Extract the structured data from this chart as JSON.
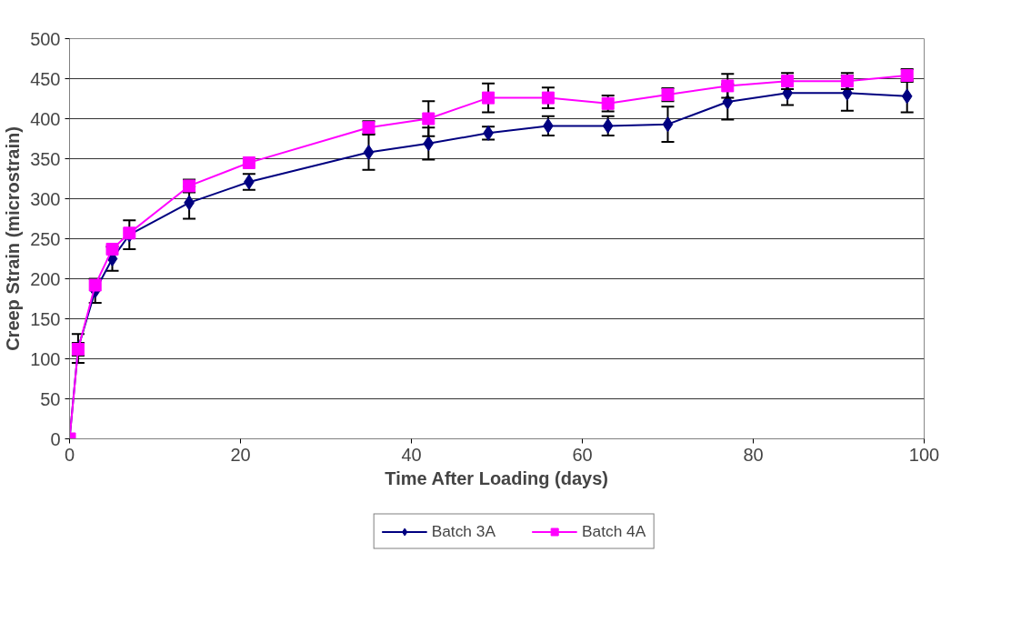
{
  "chart_data": {
    "type": "line",
    "xlabel": "Time After Loading (days)",
    "ylabel": "Creep Strain (microstrain)",
    "x": [
      0,
      1,
      3,
      5,
      7,
      14,
      21,
      35,
      42,
      49,
      56,
      63,
      70,
      77,
      84,
      91,
      98
    ],
    "series": [
      {
        "name": "Batch 3A",
        "color": "#000080",
        "marker": "diamond",
        "values": [
          0,
          113,
          185,
          225,
          255,
          295,
          321,
          358,
          369,
          382,
          391,
          391,
          393,
          421,
          432,
          432,
          428
        ],
        "errors": [
          null,
          18,
          15,
          15,
          18,
          20,
          10,
          22,
          20,
          8,
          12,
          12,
          22,
          22,
          15,
          22,
          20
        ]
      },
      {
        "name": "Batch 4A",
        "color": "#ff00ff",
        "marker": "square",
        "values": [
          0,
          112,
          192,
          237,
          257,
          316,
          345,
          389,
          400,
          426,
          426,
          419,
          430,
          441,
          447,
          447,
          454
        ],
        "errors": [
          null,
          8,
          null,
          null,
          null,
          8,
          null,
          8,
          22,
          18,
          13,
          10,
          8,
          15,
          10,
          10,
          8
        ]
      }
    ],
    "xlim": [
      0,
      100
    ],
    "xticks": [
      0,
      20,
      40,
      60,
      80,
      100
    ],
    "ylim": [
      0,
      500
    ],
    "yticks": [
      0,
      50,
      100,
      150,
      200,
      250,
      300,
      350,
      400,
      450,
      500
    ],
    "grid": "y",
    "legend": "bottom",
    "line_style": "solid"
  }
}
